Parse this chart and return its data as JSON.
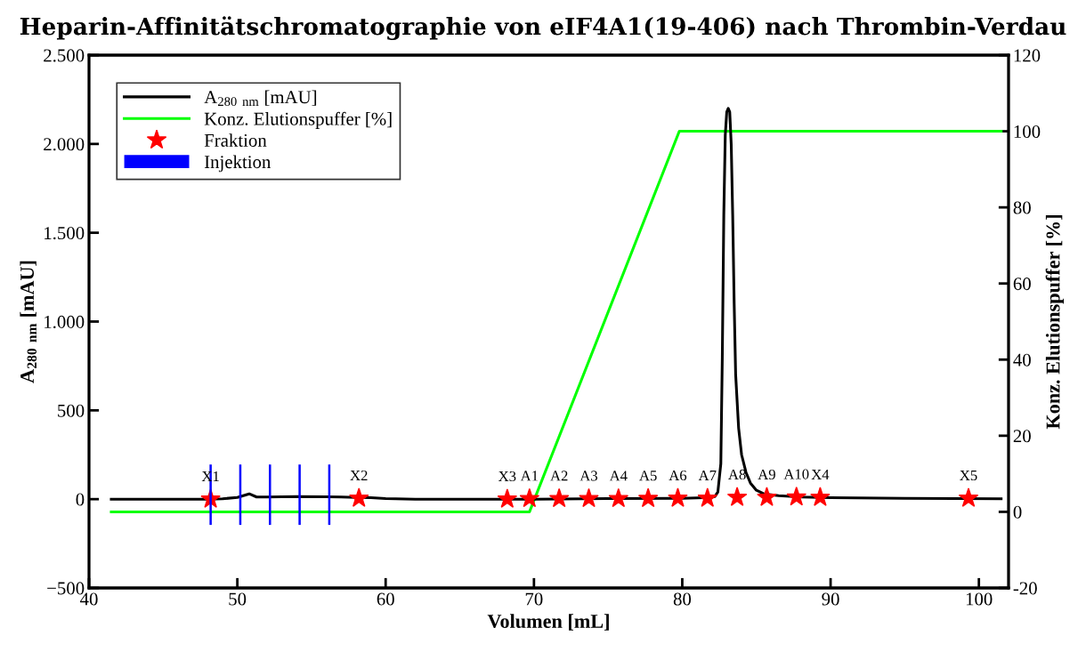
{
  "chart_data": {
    "type": "line",
    "title": "Heparin-Affinitätschromatographie von eIF4A1(19-406) nach Thrombin-Verdau",
    "xlabel": "Volumen [mL]",
    "ylabel": "A$_{280 nm}$ [mAU]",
    "y2label": "Konz. Elutionspuffer [%]",
    "xlim": [
      40,
      102
    ],
    "xticks": [
      40,
      50,
      60,
      70,
      80,
      90,
      100
    ],
    "ylim": [
      -500,
      2500
    ],
    "yticks": [
      {
        "value": -500,
        "label": "−500"
      },
      0,
      500,
      {
        "value": 1000,
        "label": "1.000"
      },
      {
        "value": 1500,
        "label": "1.500"
      },
      {
        "value": 2000,
        "label": "2.000"
      },
      {
        "value": 2500,
        "label": "2.500"
      }
    ],
    "y2lim": [
      -20,
      120
    ],
    "y2ticks": [
      -20,
      0,
      20,
      40,
      60,
      80,
      100,
      120
    ],
    "legend": "top left",
    "grid": false,
    "series": [
      {
        "name": "A$_{280 nm}$ [mAU]",
        "color": "#000000",
        "marker": "none",
        "line_style": "solid",
        "x": [
          41.5,
          47,
          48,
          49,
          50,
          50.8,
          51.3,
          52,
          54,
          56,
          57,
          58,
          59,
          60,
          62,
          70,
          75,
          80,
          81.5,
          82.2,
          82.4,
          82.6,
          82.7,
          82.8,
          82.9,
          83.0,
          83.1,
          83.2,
          83.3,
          83.4,
          83.5,
          83.6,
          83.8,
          84.0,
          84.3,
          84.6,
          85.0,
          85.5,
          86.5,
          88,
          90,
          95,
          101.5
        ],
        "values": [
          0,
          0,
          0,
          2,
          10,
          30,
          12,
          12,
          15,
          13,
          12,
          10,
          8,
          3,
          0,
          0,
          3,
          5,
          8,
          15,
          40,
          200,
          800,
          1600,
          2050,
          2180,
          2200,
          2180,
          2000,
          1600,
          1100,
          700,
          400,
          250,
          150,
          90,
          50,
          30,
          20,
          12,
          8,
          5,
          2
        ]
      },
      {
        "name": "Konz. Elutionspuffer [%]",
        "axis": "y2",
        "color": "#00ff00",
        "marker": "none",
        "line_style": "solid",
        "x": [
          41.5,
          69.7,
          79.8,
          101.5
        ],
        "values": [
          0,
          0,
          100,
          100
        ]
      },
      {
        "name": "Fraktion",
        "type": "scatter",
        "color": "#ff0000",
        "marker": "star",
        "x": [
          48.2,
          58.2,
          68.2,
          69.7,
          71.7,
          73.7,
          75.7,
          77.7,
          79.7,
          81.7,
          83.7,
          85.7,
          87.7,
          89.3,
          99.3
        ],
        "values": [
          0,
          5,
          0,
          3,
          3,
          3,
          3,
          4,
          5,
          5,
          10,
          10,
          12,
          10,
          5
        ]
      },
      {
        "name": "Injektion",
        "type": "bar",
        "color": "#0000ff",
        "x": [
          48.2,
          50.2,
          52.2,
          54.2,
          56.2
        ],
        "base": [
          -145,
          -145,
          -145,
          -145,
          -145
        ],
        "values": [
          340,
          340,
          340,
          340,
          340
        ]
      }
    ],
    "annotations": [
      {
        "text": "X1",
        "x": 48.2,
        "y": 0
      },
      {
        "text": "X2",
        "x": 58.2,
        "y": 5
      },
      {
        "text": "X3",
        "x": 68.2,
        "y": 0
      },
      {
        "text": "A1",
        "x": 69.7,
        "y": 3
      },
      {
        "text": "A2",
        "x": 71.7,
        "y": 3
      },
      {
        "text": "A3",
        "x": 73.7,
        "y": 3
      },
      {
        "text": "A4",
        "x": 75.7,
        "y": 3
      },
      {
        "text": "A5",
        "x": 77.7,
        "y": 4
      },
      {
        "text": "A6",
        "x": 79.7,
        "y": 5
      },
      {
        "text": "A7",
        "x": 81.7,
        "y": 5
      },
      {
        "text": "A8",
        "x": 83.7,
        "y": 10
      },
      {
        "text": "A9",
        "x": 85.7,
        "y": 10
      },
      {
        "text": "A10",
        "x": 87.7,
        "y": 12
      },
      {
        "text": "X4",
        "x": 89.3,
        "y": 10
      },
      {
        "text": "X5",
        "x": 99.3,
        "y": 5
      }
    ]
  }
}
